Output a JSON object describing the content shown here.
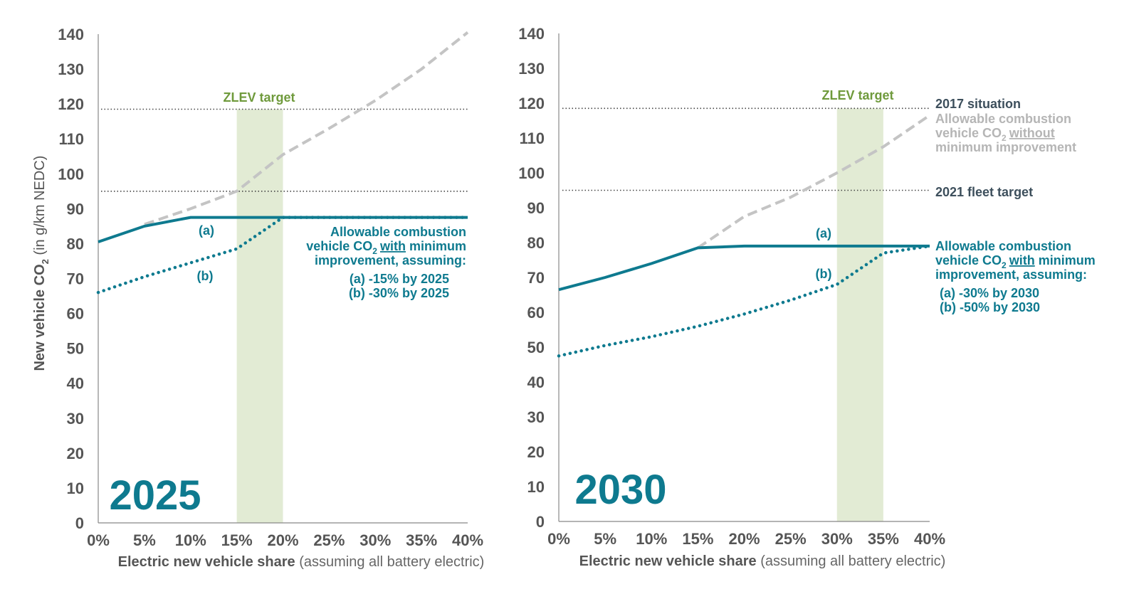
{
  "colors": {
    "teal": "#0e7a8f",
    "gray_line": "#c4c4c4",
    "gray_text": "#b5b5b5",
    "zlev_band": "#e2ebd4",
    "zlev_text": "#6f9a3c",
    "ref_line": "#444444",
    "axis": "#888888",
    "tick_text": "#555555",
    "dark_text": "#3d4f5c"
  },
  "y_axis_label": {
    "main": "New vehicle CO",
    "sub": "2",
    "rest": " (in g/km NEDC)"
  },
  "x_axis_label": {
    "bold": "Electric new vehicle share",
    "normal": " (assuming all battery electric)"
  },
  "chart_data": [
    {
      "type": "line",
      "title": "2025",
      "xlabel": "Electric new vehicle share (assuming all battery electric)",
      "ylabel": "New vehicle CO2 (in g/km NEDC)",
      "xlim": [
        0,
        40
      ],
      "ylim": [
        0,
        140
      ],
      "x_ticks": [
        "0%",
        "5%",
        "10%",
        "15%",
        "20%",
        "25%",
        "30%",
        "35%",
        "40%"
      ],
      "y_ticks": [
        "0",
        "10",
        "20",
        "30",
        "40",
        "50",
        "60",
        "70",
        "80",
        "90",
        "100",
        "110",
        "120",
        "130",
        "140"
      ],
      "reference_lines": [
        {
          "name": "2017 situation",
          "y": 118.5
        },
        {
          "name": "2021 fleet target",
          "y": 95
        }
      ],
      "band": {
        "label": "ZLEV target",
        "x0": 15,
        "x1": 20
      },
      "series": [
        {
          "name": "Allowable combustion vehicle CO2 without minimum improvement",
          "style": "dashed",
          "x": [
            5,
            10,
            15,
            20,
            25,
            30,
            35,
            40
          ],
          "y": [
            85.5,
            90,
            95,
            105.5,
            113,
            121,
            130,
            140.5
          ]
        },
        {
          "name": "(a) -15% by 2025",
          "style": "solid",
          "x": [
            0,
            5,
            10,
            15,
            20,
            25,
            30,
            35,
            40
          ],
          "y": [
            80.5,
            85,
            87.5,
            87.5,
            87.5,
            87.5,
            87.5,
            87.5,
            87.5
          ]
        },
        {
          "name": "(b) -30% by 2025",
          "style": "dotted",
          "x": [
            0,
            5,
            10,
            15,
            20,
            25,
            30,
            35,
            40
          ],
          "y": [
            66,
            70.5,
            74.5,
            78.5,
            87.5,
            87.5,
            87.5,
            87.5,
            87.5
          ]
        }
      ],
      "labels": {
        "zlev": "ZLEV target",
        "year": "2025",
        "a": "(a)",
        "b": "(b)",
        "note1": "Allowable combustion",
        "note2_pre": "vehicle CO",
        "note2_sub": "2",
        "note2_with": "with",
        "note2_post": " minimum",
        "note3": "improvement, assuming:",
        "note4": "(a) -15% by 2025",
        "note5": "(b) -30% by 2025"
      }
    },
    {
      "type": "line",
      "title": "2030",
      "xlabel": "Electric new vehicle share (assuming all battery electric)",
      "ylabel": "New vehicle CO2 (in g/km NEDC)",
      "xlim": [
        0,
        40
      ],
      "ylim": [
        0,
        140
      ],
      "x_ticks": [
        "0%",
        "5%",
        "10%",
        "15%",
        "20%",
        "25%",
        "30%",
        "35%",
        "40%"
      ],
      "y_ticks": [
        "0",
        "10",
        "20",
        "30",
        "40",
        "50",
        "60",
        "70",
        "80",
        "90",
        "100",
        "110",
        "120",
        "130",
        "140"
      ],
      "reference_lines": [
        {
          "name": "2017 situation",
          "y": 118.5
        },
        {
          "name": "2021 fleet target",
          "y": 95
        }
      ],
      "band": {
        "label": "ZLEV target",
        "x0": 30,
        "x1": 35
      },
      "series": [
        {
          "name": "Allowable combustion vehicle CO2 without minimum improvement",
          "style": "dashed",
          "x": [
            15,
            20,
            25,
            30,
            35,
            40
          ],
          "y": [
            78.5,
            87.5,
            93,
            100,
            107.5,
            116.5
          ]
        },
        {
          "name": "(a) -30% by 2030",
          "style": "solid",
          "x": [
            0,
            5,
            10,
            15,
            20,
            25,
            30,
            35,
            40
          ],
          "y": [
            66.5,
            70,
            74,
            78.5,
            79,
            79,
            79,
            79,
            79
          ]
        },
        {
          "name": "(b) -50% by 2030",
          "style": "dotted",
          "x": [
            0,
            5,
            10,
            15,
            20,
            25,
            30,
            35,
            40
          ],
          "y": [
            47.5,
            50.5,
            53,
            56,
            59.5,
            63.5,
            68,
            77,
            79
          ]
        }
      ],
      "labels": {
        "zlev": "ZLEV target",
        "year": "2030",
        "a": "(a)",
        "b": "(b)",
        "situation": "2017 situation",
        "fleet": "2021 fleet target",
        "wo1": "Allowable combustion",
        "wo2_pre": "vehicle CO",
        "wo2_sub": "2",
        "wo2_without": "without",
        "wo3": "minimum improvement",
        "note1": "Allowable combustion",
        "note2_pre": "vehicle CO",
        "note2_sub": "2",
        "note2_with": "with",
        "note2_post": " minimum",
        "note3": "improvement, assuming:",
        "note4": "(a) -30% by 2030",
        "note5": "(b) -50% by 2030"
      }
    }
  ]
}
